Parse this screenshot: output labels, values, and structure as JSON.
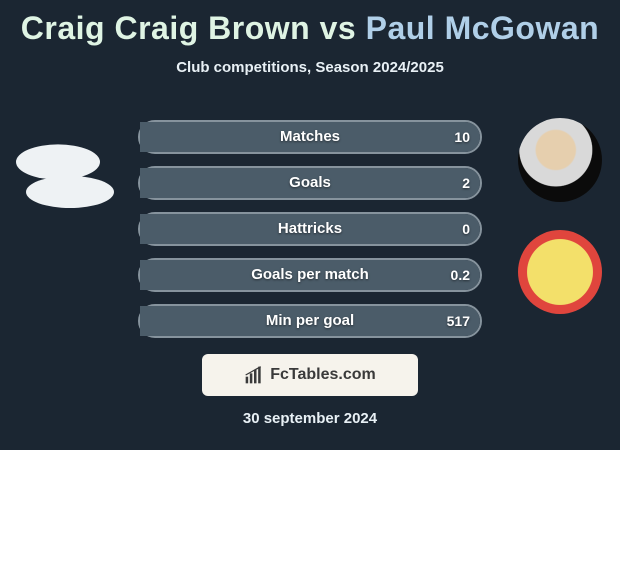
{
  "title": {
    "player1": "Craig Craig Brown",
    "vs": "vs",
    "player2": "Paul McGowan"
  },
  "subtitle": "Club competitions, Season 2024/2025",
  "rows": [
    {
      "label": "Matches",
      "left": "",
      "right": "10",
      "left_pct": 0,
      "right_pct": 100
    },
    {
      "label": "Goals",
      "left": "",
      "right": "2",
      "left_pct": 0,
      "right_pct": 100
    },
    {
      "label": "Hattricks",
      "left": "",
      "right": "0",
      "left_pct": 0,
      "right_pct": 100
    },
    {
      "label": "Goals per match",
      "left": "",
      "right": "0.2",
      "left_pct": 0,
      "right_pct": 100
    },
    {
      "label": "Min per goal",
      "left": "",
      "right": "517",
      "left_pct": 0,
      "right_pct": 100
    }
  ],
  "branding": "FcTables.com",
  "date": "30 september 2024",
  "colors": {
    "card_bg": "#1b2632",
    "bar_border": "#86939d",
    "bar_fill_right": "#4b5c69",
    "branding_bg": "#f6f3ec",
    "p1_color": "#dff4e4",
    "p2_color": "#b0cfe8"
  }
}
